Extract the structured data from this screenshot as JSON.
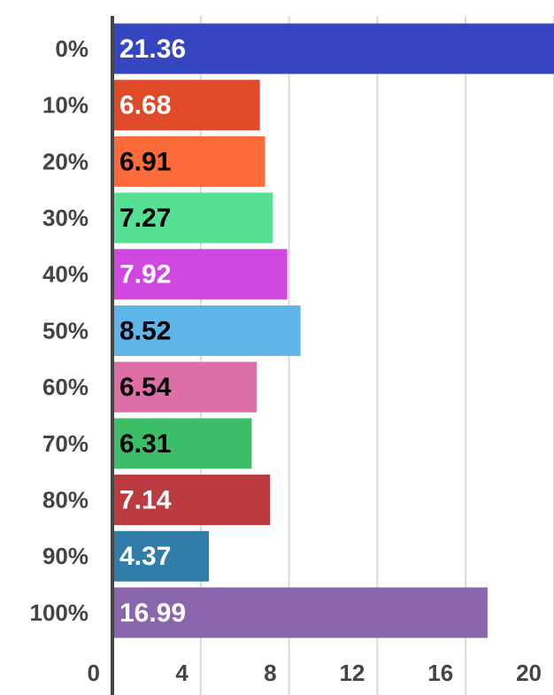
{
  "chart_data": {
    "type": "bar",
    "orientation": "horizontal",
    "categories": [
      "0%",
      "10%",
      "20%",
      "30%",
      "40%",
      "50%",
      "60%",
      "70%",
      "80%",
      "90%",
      "100%"
    ],
    "values": [
      21.36,
      6.68,
      6.91,
      7.27,
      7.92,
      8.52,
      6.54,
      6.31,
      7.14,
      4.37,
      16.99
    ],
    "colors": [
      "#3546c0",
      "#e04a28",
      "#fe6b3b",
      "#55e094",
      "#d048e0",
      "#5eb6e8",
      "#dd6fa6",
      "#3cbe68",
      "#bb3b40",
      "#2f7da8",
      "#8966ad"
    ],
    "label_colors": [
      "#ffffff",
      "#ffffff",
      "#000000",
      "#000000",
      "#ffffff",
      "#000000",
      "#000000",
      "#000000",
      "#ffffff",
      "#ffffff",
      "#ffffff"
    ],
    "xlim": [
      0,
      20
    ],
    "xticks": [
      0,
      4,
      8,
      12,
      16,
      20
    ],
    "grid": true
  }
}
